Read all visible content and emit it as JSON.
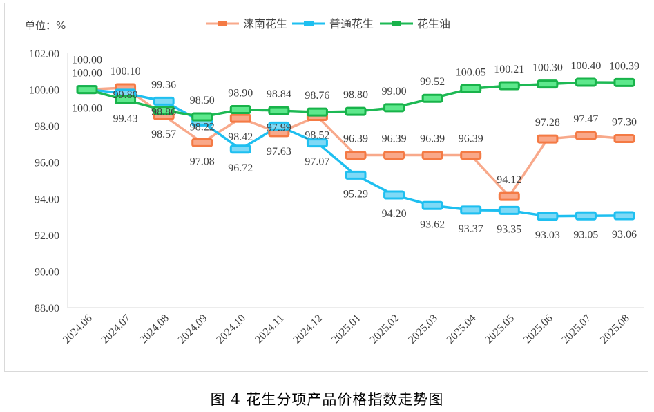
{
  "chart_data": {
    "type": "line",
    "unit_label": "单位：%",
    "caption": "图 4  花生分项产品价格指数走势图",
    "categories": [
      "2024.06",
      "2024.07",
      "2024.08",
      "2024.09",
      "2024.10",
      "2024.11",
      "2024.12",
      "2025.01",
      "2025.02",
      "2025.03",
      "2025.04",
      "2025.05",
      "2025.06",
      "2025.07",
      "2025.08"
    ],
    "ylim": [
      88,
      102
    ],
    "yticks": [
      "88.00",
      "90.00",
      "92.00",
      "94.00",
      "96.00",
      "98.00",
      "100.00",
      "102.00"
    ],
    "grid": false,
    "legend_position": "top",
    "series": [
      {
        "name": "涞南花生",
        "line_color": "#F8A98B",
        "marker_fill": "#F9A889",
        "marker_stroke": "#F47A44",
        "values": [
          100.0,
          100.1,
          98.57,
          97.08,
          98.42,
          97.63,
          98.52,
          96.39,
          96.39,
          96.39,
          96.39,
          94.12,
          97.28,
          97.47,
          97.3
        ]
      },
      {
        "name": "普通花生",
        "line_color": "#1EBFF0",
        "marker_fill": "#7FD9F6",
        "marker_stroke": "#1EBFF0",
        "values": [
          100.0,
          99.8,
          99.36,
          98.22,
          96.72,
          97.99,
          97.07,
          95.29,
          94.2,
          93.62,
          93.37,
          93.35,
          93.03,
          93.05,
          93.06
        ]
      },
      {
        "name": "花生油",
        "line_color": "#1DB954",
        "marker_fill": "#5EE88C",
        "marker_stroke": "#18B34A",
        "values": [
          100.0,
          99.43,
          98.86,
          98.5,
          98.9,
          98.84,
          98.76,
          98.8,
          99.0,
          99.52,
          100.05,
          100.21,
          100.3,
          100.4,
          100.39
        ]
      }
    ]
  }
}
